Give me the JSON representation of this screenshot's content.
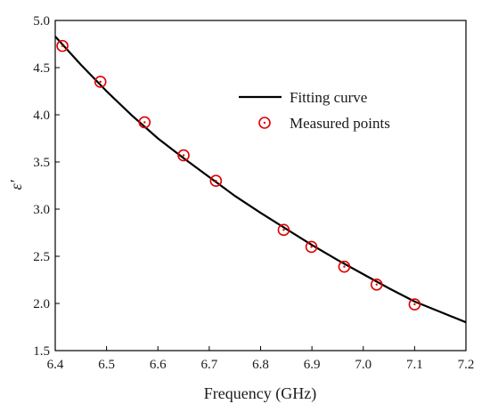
{
  "chart_data": {
    "type": "scatter",
    "xlabel": "Frequency (GHz)",
    "ylabel": "ε′",
    "xlim": [
      6.4,
      7.2
    ],
    "ylim": [
      1.5,
      5.0
    ],
    "xticks": [
      "6.4",
      "6.5",
      "6.6",
      "6.7",
      "6.8",
      "6.9",
      "7.0",
      "7.1",
      "7.2"
    ],
    "yticks": [
      "1.5",
      "2.0",
      "2.5",
      "3.0",
      "3.5",
      "4.0",
      "4.5",
      "5.0"
    ],
    "grid": false,
    "legend_position": "top-right",
    "series": [
      {
        "name": "Fitting curve",
        "style": "line",
        "color": "#000000",
        "points": [
          [
            6.4,
            4.83
          ],
          [
            6.45,
            4.53
          ],
          [
            6.5,
            4.25
          ],
          [
            6.55,
            3.99
          ],
          [
            6.6,
            3.75
          ],
          [
            6.65,
            3.54
          ],
          [
            6.7,
            3.34
          ],
          [
            6.75,
            3.14
          ],
          [
            6.8,
            2.96
          ],
          [
            6.85,
            2.79
          ],
          [
            6.9,
            2.62
          ],
          [
            6.95,
            2.46
          ],
          [
            7.0,
            2.31
          ],
          [
            7.05,
            2.16
          ],
          [
            7.1,
            2.02
          ],
          [
            7.15,
            1.91
          ],
          [
            7.2,
            1.8
          ]
        ]
      },
      {
        "name": "Measured points",
        "style": "marker",
        "color": "#e00000",
        "marker": "circle-dot",
        "points": [
          [
            6.414,
            4.73
          ],
          [
            6.488,
            4.35
          ],
          [
            6.574,
            3.92
          ],
          [
            6.65,
            3.57
          ],
          [
            6.713,
            3.3
          ],
          [
            6.845,
            2.78
          ],
          [
            6.899,
            2.6
          ],
          [
            6.963,
            2.39
          ],
          [
            7.026,
            2.2
          ],
          [
            7.1,
            1.99
          ]
        ]
      }
    ]
  }
}
